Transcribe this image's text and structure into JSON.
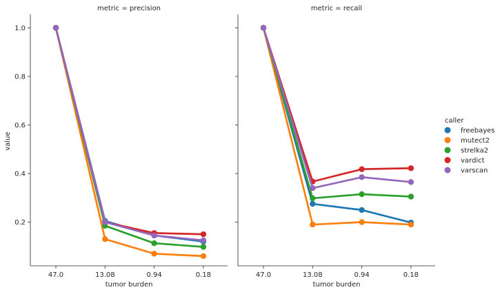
{
  "chart_data": {
    "type": "line",
    "ylabel": "value",
    "ylim": [
      0.02,
      1.055
    ],
    "yticks": [
      0.2,
      0.4,
      0.6,
      0.8,
      1.0
    ],
    "ytick_labels": [
      "0.2",
      "0.4",
      "0.6",
      "0.8",
      "1.0"
    ],
    "grid": false,
    "legend": {
      "title": "caller",
      "placement": "right",
      "entries": [
        "freebayes",
        "mutect2",
        "strelka2",
        "vardict",
        "varscan"
      ]
    },
    "colors": {
      "freebayes": "#1f77b4",
      "mutect2": "#ff7f0e",
      "strelka2": "#2ca02c",
      "vardict": "#d62728",
      "varscan": "#9467bd"
    },
    "panels": [
      {
        "title": "metric = precision",
        "xlabel": "tumor burden",
        "categories": [
          "47.0",
          "13.08",
          "0.94",
          "0.18"
        ],
        "series": [
          {
            "name": "freebayes",
            "values": [
              1.0,
              0.205,
              0.145,
              0.12
            ]
          },
          {
            "name": "mutect2",
            "values": [
              1.0,
              0.13,
              0.07,
              0.06
            ]
          },
          {
            "name": "strelka2",
            "values": [
              1.0,
              0.185,
              0.113,
              0.098
            ]
          },
          {
            "name": "vardict",
            "values": [
              1.0,
              0.2,
              0.155,
              0.15
            ]
          },
          {
            "name": "varscan",
            "values": [
              1.0,
              0.2,
              0.145,
              0.125
            ]
          }
        ]
      },
      {
        "title": "metric = recall",
        "xlabel": "tumor burden",
        "categories": [
          "47.0",
          "13.08",
          "0.94",
          "0.18"
        ],
        "series": [
          {
            "name": "freebayes",
            "values": [
              1.0,
              0.275,
              0.25,
              0.198
            ]
          },
          {
            "name": "mutect2",
            "values": [
              1.0,
              0.19,
              0.2,
              0.19
            ]
          },
          {
            "name": "strelka2",
            "values": [
              1.0,
              0.298,
              0.315,
              0.305
            ]
          },
          {
            "name": "vardict",
            "values": [
              1.0,
              0.367,
              0.418,
              0.422
            ]
          },
          {
            "name": "varscan",
            "values": [
              1.0,
              0.34,
              0.385,
              0.365
            ]
          }
        ]
      }
    ]
  }
}
